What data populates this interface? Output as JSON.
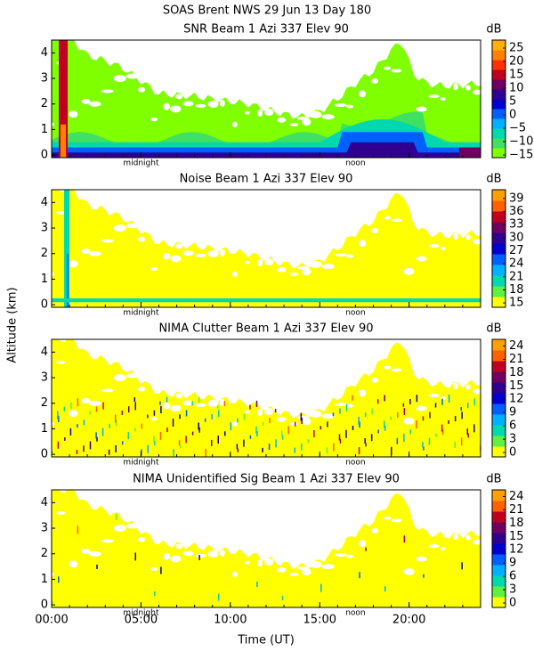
{
  "title": "SOAS Brent NWS  29 Jun 13 Day 180",
  "ylabel": "Altitude (km)",
  "xlabel": "Time (UT)",
  "chart_data": [
    {
      "type": "heatmap",
      "title": "SNR Beam 1 Azi 337 Elev 90",
      "xlim": [
        0,
        24
      ],
      "xticks": [
        0,
        5,
        10,
        15,
        20
      ],
      "ylim": [
        -0.1,
        4.5
      ],
      "yticks": [
        0,
        1,
        2,
        3,
        4
      ],
      "annotations": [
        {
          "x": 5,
          "text": "midnight"
        },
        {
          "x": 17,
          "text": "noon"
        }
      ],
      "colorbar": {
        "label": "dB",
        "lim": [
          -16,
          28
        ],
        "ticks": [
          25,
          20,
          15,
          10,
          5,
          0,
          {
            "value": -5,
            "label": "−5"
          },
          {
            "value": -10,
            "label": "−10"
          },
          {
            "value": -15,
            "label": "−15"
          }
        ],
        "colors": [
          "#80ff00",
          "#40e060",
          "#00d8b0",
          "#00b0ff",
          "#0060ff",
          "#0000d0",
          "#300090",
          "#700060",
          "#c00020",
          "#ff3000",
          "#ff8000",
          "#ffb000"
        ]
      }
    },
    {
      "type": "heatmap",
      "title": "Noise Beam 1 Azi 337 Elev 90",
      "xlim": [
        0,
        24
      ],
      "xticks": [
        0,
        5,
        10,
        15,
        20
      ],
      "ylim": [
        -0.1,
        4.5
      ],
      "yticks": [
        0,
        1,
        2,
        3,
        4
      ],
      "annotations": [
        {
          "x": 5,
          "text": "midnight"
        },
        {
          "x": 17,
          "text": "noon"
        }
      ],
      "colorbar": {
        "label": "dB",
        "lim": [
          14,
          41
        ],
        "ticks": [
          39,
          36,
          33,
          30,
          27,
          24,
          21,
          18,
          15
        ],
        "colors": [
          "#ffff00",
          "#60f040",
          "#00d8b0",
          "#00b0ff",
          "#0060ff",
          "#0000d0",
          "#300090",
          "#700060",
          "#c00020",
          "#ff6000",
          "#ffa000"
        ]
      }
    },
    {
      "type": "heatmap",
      "title": "NIMA Clutter Beam 1 Azi 337 Elev 90",
      "xlim": [
        0,
        24
      ],
      "xticks": [
        0,
        5,
        10,
        15,
        20
      ],
      "ylim": [
        -0.1,
        4.5
      ],
      "yticks": [
        0,
        1,
        2,
        3,
        4
      ],
      "annotations": [
        {
          "x": 5,
          "text": "midnight"
        },
        {
          "x": 17,
          "text": "noon"
        }
      ],
      "colorbar": {
        "label": "dB",
        "lim": [
          -1,
          25.5
        ],
        "ticks": [
          24,
          21,
          18,
          15,
          12,
          9,
          6,
          3,
          0
        ],
        "colors": [
          "#ffff00",
          "#60f040",
          "#00d8b0",
          "#00b0ff",
          "#0060ff",
          "#0000d0",
          "#300090",
          "#700060",
          "#c00020",
          "#ff6000",
          "#ffa000"
        ]
      }
    },
    {
      "type": "heatmap",
      "title": "NIMA Unidentified Sig Beam 1 Azi 337 Elev 90",
      "xlim": [
        0,
        24
      ],
      "xticks": [
        {
          "value": 0,
          "label": "00:00"
        },
        {
          "value": 5,
          "label": "05:00"
        },
        {
          "value": 10,
          "label": "10:00"
        },
        {
          "value": 15,
          "label": "15:00"
        },
        {
          "value": 20,
          "label": "20:00"
        }
      ],
      "ylim": [
        -0.1,
        4.5
      ],
      "yticks": [
        0,
        1,
        2,
        3,
        4
      ],
      "annotations": [
        {
          "x": 5,
          "text": "midnight"
        },
        {
          "x": 17,
          "text": "noon"
        }
      ],
      "colorbar": {
        "label": "dB",
        "lim": [
          -1,
          25.5
        ],
        "ticks": [
          24,
          21,
          18,
          15,
          12,
          9,
          6,
          3,
          0
        ],
        "colors": [
          "#ffff00",
          "#60f040",
          "#00d8b0",
          "#00b0ff",
          "#0060ff",
          "#0000d0",
          "#300090",
          "#700060",
          "#c00020",
          "#ff6000",
          "#ffa000"
        ]
      }
    }
  ]
}
